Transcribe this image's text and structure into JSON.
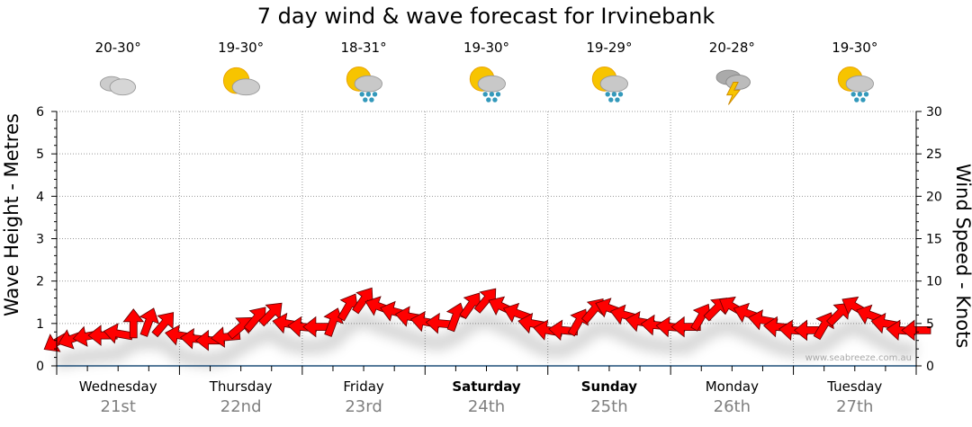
{
  "title": "7 day wind & wave forecast for Irvinebank",
  "days": [
    {
      "name": "Wednesday",
      "date": "21st",
      "temp": "20-30°",
      "icon": "cloudy-icon",
      "bold": false
    },
    {
      "name": "Thursday",
      "date": "22nd",
      "temp": "19-30°",
      "icon": "partly-cloudy-icon",
      "bold": false
    },
    {
      "name": "Friday",
      "date": "23rd",
      "temp": "18-31°",
      "icon": "sun-showers-icon",
      "bold": false
    },
    {
      "name": "Saturday",
      "date": "24th",
      "temp": "19-30°",
      "icon": "sun-showers-icon",
      "bold": true
    },
    {
      "name": "Sunday",
      "date": "25th",
      "temp": "19-29°",
      "icon": "sun-showers-icon",
      "bold": true
    },
    {
      "name": "Monday",
      "date": "26th",
      "temp": "20-28°",
      "icon": "thunderstorm-icon",
      "bold": false
    },
    {
      "name": "Tuesday",
      "date": "27th",
      "temp": "19-30°",
      "icon": "sun-showers-icon",
      "bold": false
    }
  ],
  "watermark": "www.seabreeze.com.au",
  "colors": {
    "arrow": "#ff0000",
    "arrow_stroke": "#600000",
    "axis": "#1f4e79",
    "grid": "#999999",
    "date": "#808080"
  },
  "chart_data": {
    "type": "scatter",
    "title": "7 day wind & wave forecast for Irvinebank",
    "ylabel": "Wave Height - Metres",
    "y2label": "Wind Speed - Knots",
    "ylim": [
      0,
      6
    ],
    "y2lim": [
      0,
      30
    ],
    "yticks": [
      "0",
      "1",
      "2",
      "3",
      "4",
      "5",
      "6"
    ],
    "y2ticks": [
      "0",
      "5",
      "10",
      "15",
      "20",
      "25",
      "30"
    ],
    "grid": true,
    "x_interval_hours": 3,
    "series": [
      {
        "name": "Wind",
        "knots": [
          2.8,
          3.2,
          3.5,
          3.6,
          3.8,
          5.0,
          5.2,
          5.0,
          3.6,
          3.2,
          3.0,
          3.4,
          4.6,
          5.6,
          6.2,
          5.0,
          4.6,
          4.6,
          5.2,
          7.0,
          7.8,
          7.0,
          6.4,
          5.8,
          5.2,
          5.0,
          5.8,
          7.2,
          7.8,
          7.0,
          6.2,
          5.0,
          4.2,
          4.2,
          5.2,
          6.6,
          6.8,
          6.0,
          5.2,
          4.8,
          4.6,
          4.6,
          5.8,
          6.8,
          7.0,
          6.2,
          5.4,
          4.6,
          4.2,
          4.2,
          4.8,
          6.2,
          7.0,
          6.0,
          5.0,
          4.2,
          4.2
        ],
        "direction_deg": [
          60,
          70,
          80,
          90,
          100,
          180,
          200,
          220,
          100,
          95,
          90,
          85,
          230,
          220,
          225,
          100,
          95,
          90,
          200,
          210,
          215,
          110,
          105,
          100,
          100,
          95,
          200,
          215,
          220,
          115,
          110,
          100,
          100,
          95,
          210,
          220,
          110,
          105,
          100,
          95,
          95,
          90,
          210,
          225,
          120,
          110,
          100,
          95,
          95,
          90,
          210,
          225,
          120,
          110,
          100,
          95,
          90
        ]
      }
    ]
  }
}
